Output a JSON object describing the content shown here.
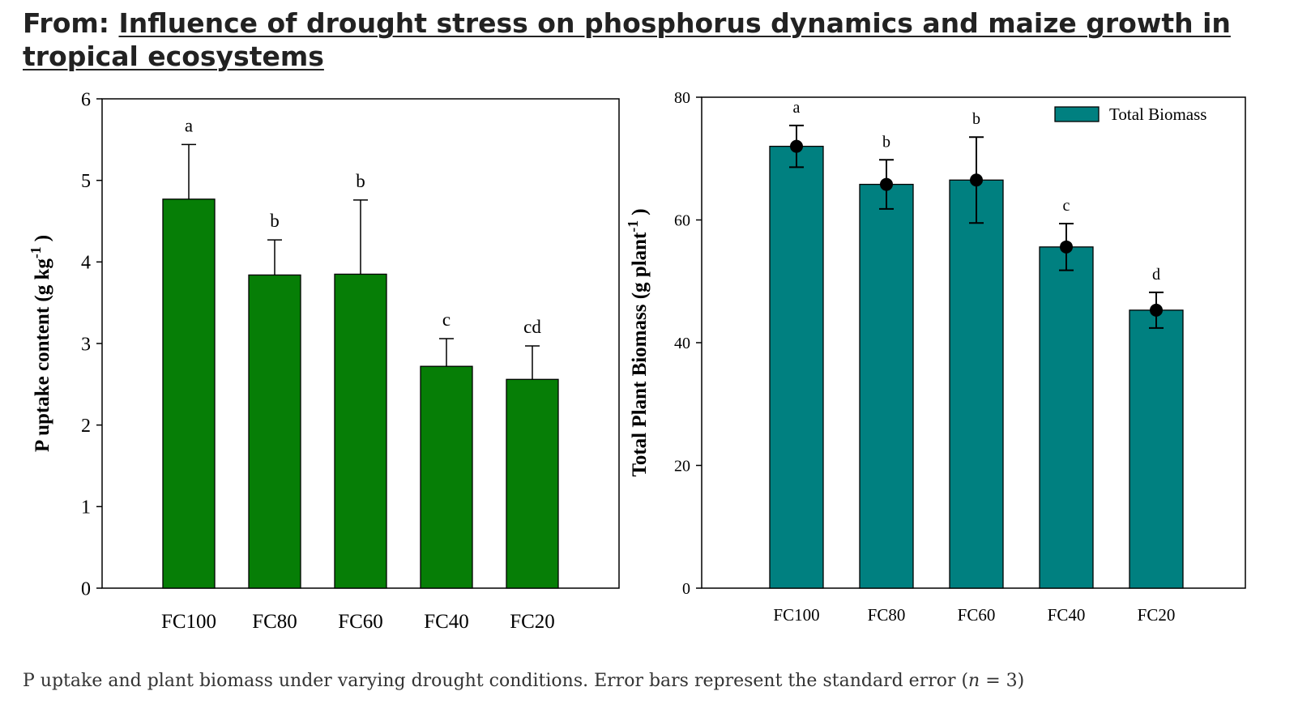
{
  "heading": {
    "prefix": "From:",
    "title": "Influence of drought stress on phosphorus dynamics and maize growth in tropical ecosystems"
  },
  "caption": {
    "text_before": "P uptake and plant biomass under varying drought conditions. Error bars represent the standard error (",
    "n_symbol": "n",
    "text_after": " = 3)"
  },
  "chart_data": [
    {
      "type": "bar",
      "categories": [
        "FC100",
        "FC80",
        "FC60",
        "FC40",
        "FC20"
      ],
      "values": [
        4.77,
        3.84,
        3.85,
        2.72,
        2.56
      ],
      "error": [
        0.67,
        0.43,
        0.91,
        0.34,
        0.41
      ],
      "letters": [
        "a",
        "b",
        "b",
        "c",
        "cd"
      ],
      "ylabel": "P uptake content (g kg-1)",
      "ylabel_main": "P uptake content (g kg",
      "ylabel_sup": "-1",
      "ylabel_close": ")",
      "ylim": [
        0,
        6
      ],
      "yticks": [
        "0",
        "1",
        "2",
        "3",
        "4",
        "5",
        "6"
      ],
      "color": "#067e06",
      "grid": false
    },
    {
      "type": "bar",
      "categories": [
        "FC100",
        "FC80",
        "FC60",
        "FC40",
        "FC20"
      ],
      "values": [
        72.0,
        65.8,
        66.5,
        55.6,
        45.3
      ],
      "error": [
        3.4,
        4.0,
        7.0,
        3.8,
        2.9
      ],
      "letters": [
        "a",
        "b",
        "b",
        "c",
        "d"
      ],
      "ylabel": "Total Plant Biomass (g plant-1)",
      "ylabel_main": "Total Plant Biomass (g plant",
      "ylabel_sup": "-1",
      "ylabel_close": ")",
      "ylim": [
        0,
        80
      ],
      "yticks": [
        "0",
        "20",
        "40",
        "60",
        "80"
      ],
      "legend": "Total Biomass",
      "legend_position": "top-right",
      "color": "#008080",
      "grid": false
    }
  ]
}
